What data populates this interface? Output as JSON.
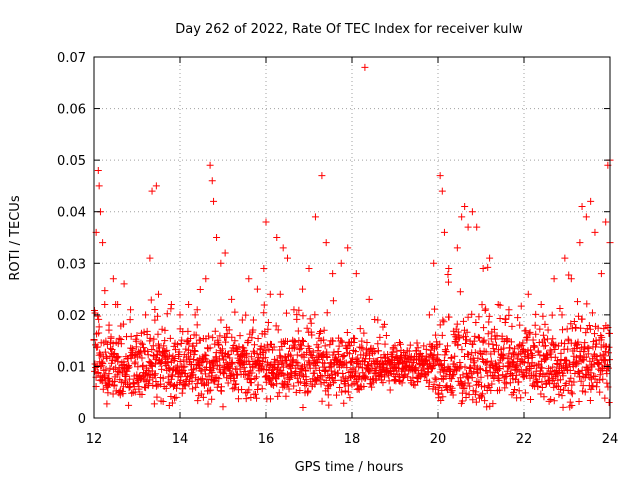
{
  "chart_data": {
    "type": "scatter",
    "title": "Day 262 of 2022, Rate Of TEC Index for receiver kulw",
    "xlabel": "GPS time / hours",
    "ylabel": "ROTI / TECUs",
    "xlim": [
      12,
      24
    ],
    "ylim": [
      0,
      0.07
    ],
    "xticks": [
      12,
      14,
      16,
      18,
      20,
      22,
      24
    ],
    "xtick_labels": [
      "12",
      "14",
      "16",
      "18",
      "20",
      "22",
      "24"
    ],
    "yticks": [
      0,
      0.01,
      0.02,
      0.03,
      0.04,
      0.05,
      0.06,
      0.07
    ],
    "ytick_labels": [
      "0",
      "0.01",
      "0.02",
      "0.03",
      "0.04",
      "0.05",
      "0.06",
      "0.07"
    ],
    "grid": true,
    "marker": "+",
    "color": "#ff0000",
    "series": [
      {
        "name": "ROTI",
        "points": [
          [
            12.05,
            0.036
          ],
          [
            12.1,
            0.048
          ],
          [
            12.12,
            0.045
          ],
          [
            12.15,
            0.04
          ],
          [
            12.2,
            0.034
          ],
          [
            12.25,
            0.022
          ],
          [
            12.35,
            0.018
          ],
          [
            12.45,
            0.027
          ],
          [
            12.55,
            0.022
          ],
          [
            12.7,
            0.026
          ],
          [
            12.85,
            0.021
          ],
          [
            13.0,
            0.016
          ],
          [
            13.2,
            0.02
          ],
          [
            13.3,
            0.031
          ],
          [
            13.35,
            0.044
          ],
          [
            13.45,
            0.045
          ],
          [
            13.5,
            0.024
          ],
          [
            13.65,
            0.017
          ],
          [
            13.8,
            0.022
          ],
          [
            14.0,
            0.02
          ],
          [
            14.2,
            0.022
          ],
          [
            14.4,
            0.021
          ],
          [
            14.6,
            0.027
          ],
          [
            14.7,
            0.049
          ],
          [
            14.75,
            0.046
          ],
          [
            14.78,
            0.042
          ],
          [
            14.85,
            0.035
          ],
          [
            14.95,
            0.03
          ],
          [
            15.05,
            0.032
          ],
          [
            15.2,
            0.023
          ],
          [
            15.45,
            0.019
          ],
          [
            15.6,
            0.027
          ],
          [
            15.8,
            0.025
          ],
          [
            15.95,
            0.029
          ],
          [
            16.0,
            0.038
          ],
          [
            16.1,
            0.024
          ],
          [
            16.25,
            0.035
          ],
          [
            16.4,
            0.033
          ],
          [
            16.5,
            0.031
          ],
          [
            16.65,
            0.021
          ],
          [
            16.85,
            0.025
          ],
          [
            17.0,
            0.029
          ],
          [
            17.15,
            0.039
          ],
          [
            17.3,
            0.047
          ],
          [
            17.4,
            0.034
          ],
          [
            17.55,
            0.028
          ],
          [
            17.75,
            0.03
          ],
          [
            17.9,
            0.033
          ],
          [
            18.1,
            0.028
          ],
          [
            18.3,
            0.068
          ],
          [
            18.4,
            0.023
          ],
          [
            18.6,
            0.019
          ],
          [
            18.8,
            0.016
          ],
          [
            19.0,
            0.014
          ],
          [
            19.25,
            0.012
          ],
          [
            19.5,
            0.013
          ],
          [
            19.8,
            0.02
          ],
          [
            19.9,
            0.03
          ],
          [
            20.05,
            0.047
          ],
          [
            20.1,
            0.044
          ],
          [
            20.15,
            0.036
          ],
          [
            20.25,
            0.029
          ],
          [
            20.45,
            0.033
          ],
          [
            20.55,
            0.039
          ],
          [
            20.62,
            0.041
          ],
          [
            20.7,
            0.037
          ],
          [
            20.8,
            0.04
          ],
          [
            20.9,
            0.037
          ],
          [
            21.05,
            0.029
          ],
          [
            21.2,
            0.031
          ],
          [
            21.4,
            0.022
          ],
          [
            21.65,
            0.021
          ],
          [
            21.9,
            0.018
          ],
          [
            22.1,
            0.024
          ],
          [
            22.4,
            0.022
          ],
          [
            22.7,
            0.027
          ],
          [
            22.95,
            0.031
          ],
          [
            23.1,
            0.027
          ],
          [
            23.3,
            0.034
          ],
          [
            23.35,
            0.041
          ],
          [
            23.45,
            0.039
          ],
          [
            23.55,
            0.042
          ],
          [
            23.65,
            0.036
          ],
          [
            23.8,
            0.028
          ],
          [
            23.9,
            0.038
          ],
          [
            23.95,
            0.049
          ],
          [
            24.0,
            0.05
          ],
          [
            24.0,
            0.034
          ],
          [
            23.98,
            0.003
          ]
        ]
      }
    ],
    "background_band": {
      "description_of_distribution": "dense scatter between 0.003 and 0.02 across the full range",
      "x_start": 12.0,
      "x_end": 24.0,
      "step": 0.012,
      "y_mean": 0.01,
      "y_spread": 0.006,
      "seed": 262
    }
  }
}
